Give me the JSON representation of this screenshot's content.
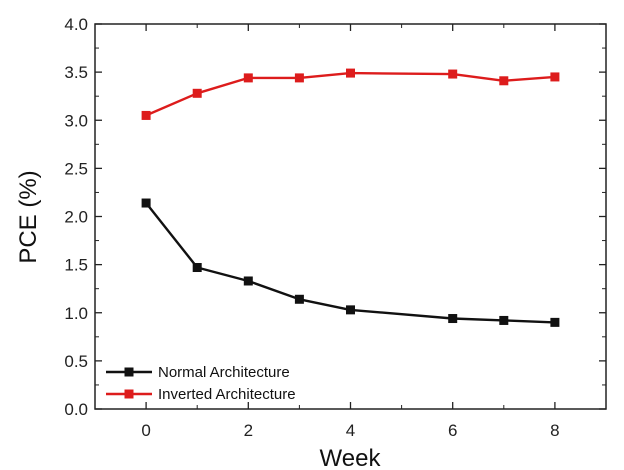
{
  "chart_data": {
    "type": "line",
    "xlabel": "Week",
    "ylabel": "PCE (%)",
    "xlim": [
      -1,
      9
    ],
    "ylim": [
      0,
      4
    ],
    "xticks": [
      0,
      2,
      4,
      6,
      8
    ],
    "xtick_labels": [
      "0",
      "2",
      "4",
      "6",
      "8"
    ],
    "yticks": [
      0,
      0.5,
      1,
      1.5,
      2,
      2.5,
      3,
      3.5,
      4
    ],
    "ytick_labels": [
      "0.0",
      "0.5",
      "1.0",
      "1.5",
      "2.0",
      "2.5",
      "3.0",
      "3.5",
      "4.0"
    ],
    "grid": false,
    "legend_position": "bottom-left",
    "series": [
      {
        "name": "Normal Architecture",
        "color": "#111111",
        "marker": "square",
        "x": [
          0,
          1,
          2,
          3,
          4,
          6,
          7,
          8
        ],
        "y": [
          2.14,
          1.47,
          1.33,
          1.14,
          1.03,
          0.94,
          0.92,
          0.9
        ]
      },
      {
        "name": "Inverted Architecture",
        "color": "#dd1c1c",
        "marker": "square",
        "x": [
          0,
          1,
          2,
          3,
          4,
          6,
          7,
          8
        ],
        "y": [
          3.05,
          3.28,
          3.44,
          3.44,
          3.49,
          3.48,
          3.41,
          3.45
        ]
      }
    ]
  }
}
